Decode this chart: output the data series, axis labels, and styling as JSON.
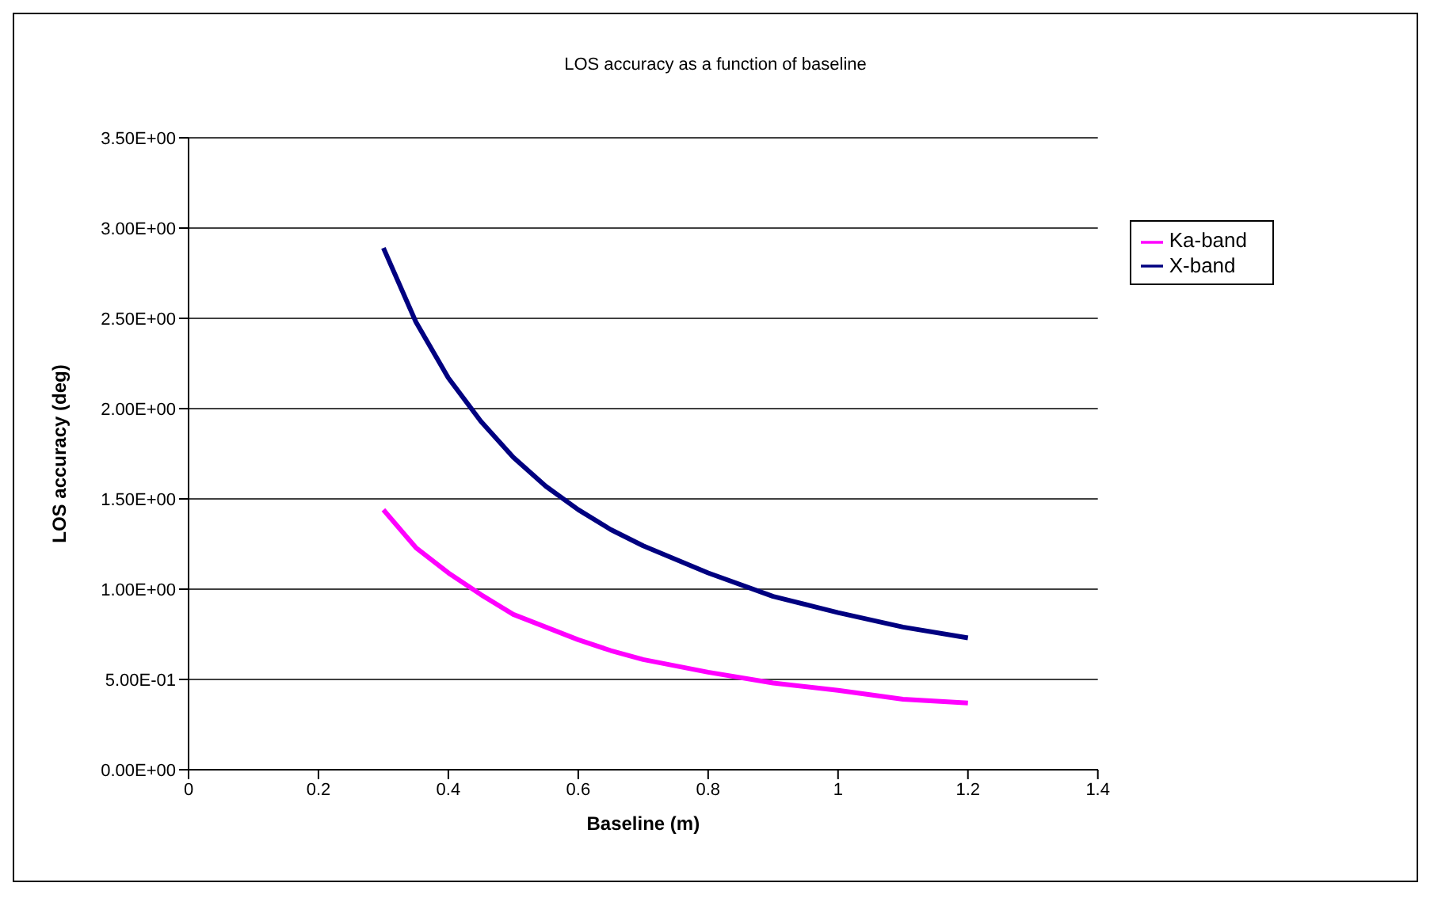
{
  "chart_data": {
    "type": "line",
    "title": "LOS accuracy as a function of baseline",
    "xlabel": "Baseline (m)",
    "ylabel": "LOS accuracy (deg)",
    "x": [
      0.3,
      0.35,
      0.4,
      0.45,
      0.5,
      0.55,
      0.6,
      0.65,
      0.7,
      0.8,
      0.9,
      1.0,
      1.1,
      1.2
    ],
    "series": [
      {
        "name": "X-band",
        "color": "#000080",
        "values": [
          2.89,
          2.48,
          2.17,
          1.93,
          1.73,
          1.57,
          1.44,
          1.33,
          1.24,
          1.09,
          0.96,
          0.87,
          0.79,
          0.73
        ]
      },
      {
        "name": "Ka-band",
        "color": "#ff00ff",
        "values": [
          1.44,
          1.23,
          1.09,
          0.97,
          0.86,
          0.79,
          0.72,
          0.66,
          0.61,
          0.54,
          0.48,
          0.44,
          0.39,
          0.37
        ]
      }
    ],
    "xlim": [
      0,
      1.4
    ],
    "xticks": [
      0,
      0.2,
      0.4,
      0.6,
      0.8,
      1,
      1.2,
      1.4
    ],
    "ylim": [
      0,
      3.5
    ],
    "yticks": [
      {
        "value": 0,
        "label": "0.00E+00"
      },
      {
        "value": 0.5,
        "label": "5.00E-01"
      },
      {
        "value": 1,
        "label": "1.00E+00"
      },
      {
        "value": 1.5,
        "label": "1.50E+00"
      },
      {
        "value": 2,
        "label": "2.00E+00"
      },
      {
        "value": 2.5,
        "label": "2.50E+00"
      },
      {
        "value": 3,
        "label": "3.00E+00"
      },
      {
        "value": 3.5,
        "label": "3.50E+00"
      }
    ],
    "grid": "y",
    "legend": "right",
    "marker": "none",
    "line_style": "solid"
  }
}
